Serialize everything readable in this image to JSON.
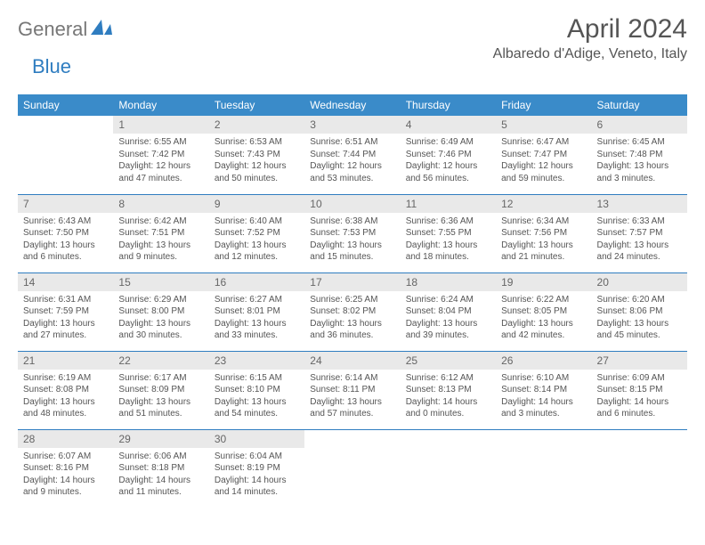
{
  "brand": {
    "general": "General",
    "blue": "Blue"
  },
  "title": "April 2024",
  "location": "Albaredo d'Adige, Veneto, Italy",
  "colors": {
    "header_bg": "#3a8bc9",
    "header_text": "#ffffff",
    "daynum_bg": "#e9e9e9",
    "rule": "#2f7dc0",
    "brand_blue": "#2f7dc0",
    "text": "#555555"
  },
  "weekdays": [
    "Sunday",
    "Monday",
    "Tuesday",
    "Wednesday",
    "Thursday",
    "Friday",
    "Saturday"
  ],
  "weeks": [
    [
      {
        "empty": true
      },
      {
        "n": "1",
        "sr": "Sunrise: 6:55 AM",
        "ss": "Sunset: 7:42 PM",
        "dl": "Daylight: 12 hours and 47 minutes."
      },
      {
        "n": "2",
        "sr": "Sunrise: 6:53 AM",
        "ss": "Sunset: 7:43 PM",
        "dl": "Daylight: 12 hours and 50 minutes."
      },
      {
        "n": "3",
        "sr": "Sunrise: 6:51 AM",
        "ss": "Sunset: 7:44 PM",
        "dl": "Daylight: 12 hours and 53 minutes."
      },
      {
        "n": "4",
        "sr": "Sunrise: 6:49 AM",
        "ss": "Sunset: 7:46 PM",
        "dl": "Daylight: 12 hours and 56 minutes."
      },
      {
        "n": "5",
        "sr": "Sunrise: 6:47 AM",
        "ss": "Sunset: 7:47 PM",
        "dl": "Daylight: 12 hours and 59 minutes."
      },
      {
        "n": "6",
        "sr": "Sunrise: 6:45 AM",
        "ss": "Sunset: 7:48 PM",
        "dl": "Daylight: 13 hours and 3 minutes."
      }
    ],
    [
      {
        "n": "7",
        "sr": "Sunrise: 6:43 AM",
        "ss": "Sunset: 7:50 PM",
        "dl": "Daylight: 13 hours and 6 minutes."
      },
      {
        "n": "8",
        "sr": "Sunrise: 6:42 AM",
        "ss": "Sunset: 7:51 PM",
        "dl": "Daylight: 13 hours and 9 minutes."
      },
      {
        "n": "9",
        "sr": "Sunrise: 6:40 AM",
        "ss": "Sunset: 7:52 PM",
        "dl": "Daylight: 13 hours and 12 minutes."
      },
      {
        "n": "10",
        "sr": "Sunrise: 6:38 AM",
        "ss": "Sunset: 7:53 PM",
        "dl": "Daylight: 13 hours and 15 minutes."
      },
      {
        "n": "11",
        "sr": "Sunrise: 6:36 AM",
        "ss": "Sunset: 7:55 PM",
        "dl": "Daylight: 13 hours and 18 minutes."
      },
      {
        "n": "12",
        "sr": "Sunrise: 6:34 AM",
        "ss": "Sunset: 7:56 PM",
        "dl": "Daylight: 13 hours and 21 minutes."
      },
      {
        "n": "13",
        "sr": "Sunrise: 6:33 AM",
        "ss": "Sunset: 7:57 PM",
        "dl": "Daylight: 13 hours and 24 minutes."
      }
    ],
    [
      {
        "n": "14",
        "sr": "Sunrise: 6:31 AM",
        "ss": "Sunset: 7:59 PM",
        "dl": "Daylight: 13 hours and 27 minutes."
      },
      {
        "n": "15",
        "sr": "Sunrise: 6:29 AM",
        "ss": "Sunset: 8:00 PM",
        "dl": "Daylight: 13 hours and 30 minutes."
      },
      {
        "n": "16",
        "sr": "Sunrise: 6:27 AM",
        "ss": "Sunset: 8:01 PM",
        "dl": "Daylight: 13 hours and 33 minutes."
      },
      {
        "n": "17",
        "sr": "Sunrise: 6:25 AM",
        "ss": "Sunset: 8:02 PM",
        "dl": "Daylight: 13 hours and 36 minutes."
      },
      {
        "n": "18",
        "sr": "Sunrise: 6:24 AM",
        "ss": "Sunset: 8:04 PM",
        "dl": "Daylight: 13 hours and 39 minutes."
      },
      {
        "n": "19",
        "sr": "Sunrise: 6:22 AM",
        "ss": "Sunset: 8:05 PM",
        "dl": "Daylight: 13 hours and 42 minutes."
      },
      {
        "n": "20",
        "sr": "Sunrise: 6:20 AM",
        "ss": "Sunset: 8:06 PM",
        "dl": "Daylight: 13 hours and 45 minutes."
      }
    ],
    [
      {
        "n": "21",
        "sr": "Sunrise: 6:19 AM",
        "ss": "Sunset: 8:08 PM",
        "dl": "Daylight: 13 hours and 48 minutes."
      },
      {
        "n": "22",
        "sr": "Sunrise: 6:17 AM",
        "ss": "Sunset: 8:09 PM",
        "dl": "Daylight: 13 hours and 51 minutes."
      },
      {
        "n": "23",
        "sr": "Sunrise: 6:15 AM",
        "ss": "Sunset: 8:10 PM",
        "dl": "Daylight: 13 hours and 54 minutes."
      },
      {
        "n": "24",
        "sr": "Sunrise: 6:14 AM",
        "ss": "Sunset: 8:11 PM",
        "dl": "Daylight: 13 hours and 57 minutes."
      },
      {
        "n": "25",
        "sr": "Sunrise: 6:12 AM",
        "ss": "Sunset: 8:13 PM",
        "dl": "Daylight: 14 hours and 0 minutes."
      },
      {
        "n": "26",
        "sr": "Sunrise: 6:10 AM",
        "ss": "Sunset: 8:14 PM",
        "dl": "Daylight: 14 hours and 3 minutes."
      },
      {
        "n": "27",
        "sr": "Sunrise: 6:09 AM",
        "ss": "Sunset: 8:15 PM",
        "dl": "Daylight: 14 hours and 6 minutes."
      }
    ],
    [
      {
        "n": "28",
        "sr": "Sunrise: 6:07 AM",
        "ss": "Sunset: 8:16 PM",
        "dl": "Daylight: 14 hours and 9 minutes."
      },
      {
        "n": "29",
        "sr": "Sunrise: 6:06 AM",
        "ss": "Sunset: 8:18 PM",
        "dl": "Daylight: 14 hours and 11 minutes."
      },
      {
        "n": "30",
        "sr": "Sunrise: 6:04 AM",
        "ss": "Sunset: 8:19 PM",
        "dl": "Daylight: 14 hours and 14 minutes."
      },
      {
        "empty": true
      },
      {
        "empty": true
      },
      {
        "empty": true
      },
      {
        "empty": true
      }
    ]
  ]
}
